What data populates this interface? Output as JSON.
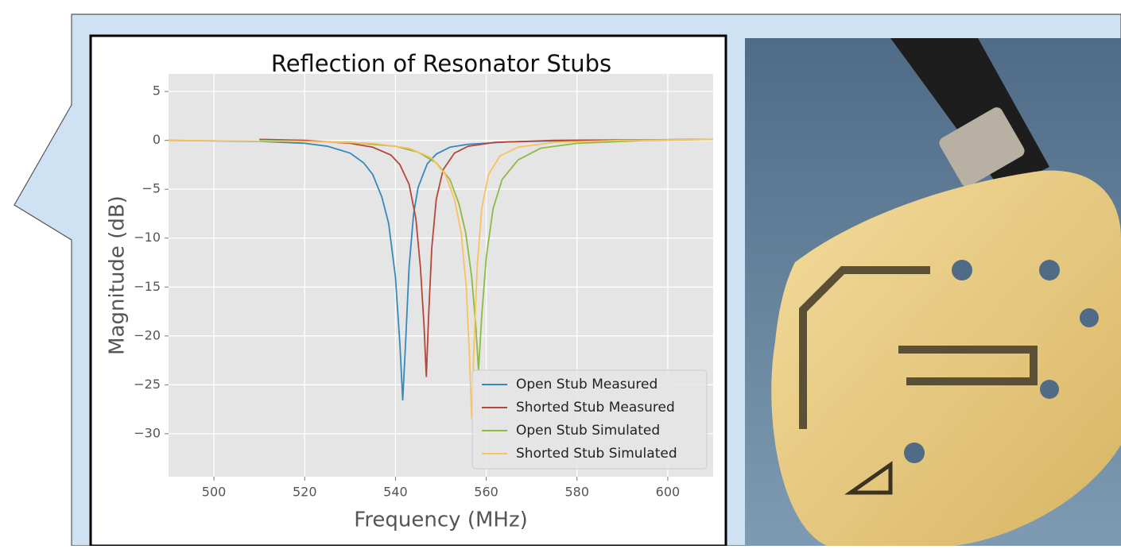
{
  "chart_data": {
    "type": "line",
    "title": "Reflection of Resonator Stubs",
    "x_label": "Frequency (MHz)",
    "y_label": "Magnitude (dB)",
    "xlim": [
      490,
      610
    ],
    "ylim": [
      -34.4,
      6.8
    ],
    "xticks": [
      500,
      520,
      540,
      560,
      580,
      600
    ],
    "yticks": [
      5,
      0,
      {
        "value": -5,
        "label": "−5"
      },
      {
        "value": -10,
        "label": "−10"
      },
      {
        "value": -15,
        "label": "−15"
      },
      {
        "value": -20,
        "label": "−20"
      },
      {
        "value": -25,
        "label": "−25"
      },
      {
        "value": -30,
        "label": "−30"
      }
    ],
    "grid": true,
    "legend": "lower right",
    "series": [
      {
        "name": "Open Stub Measured",
        "color": "#348ABD",
        "x": [
          490,
          510,
          520,
          525,
          530,
          533,
          535,
          537,
          538.5,
          540,
          541,
          541.6,
          542.3,
          543,
          544,
          545,
          547,
          549,
          552,
          556,
          565,
          580,
          610
        ],
        "values": [
          0,
          -0.1,
          -0.3,
          -0.6,
          -1.3,
          -2.3,
          -3.5,
          -5.8,
          -8.5,
          -14,
          -21,
          -26.6,
          -20,
          -13,
          -7.5,
          -4.8,
          -2.4,
          -1.4,
          -0.7,
          -0.4,
          -0.15,
          0,
          0.1
        ]
      },
      {
        "name": "Shorted Stub Measured",
        "color": "#B5473A",
        "x": [
          510,
          520,
          530,
          535,
          539,
          541,
          543,
          544.5,
          545.5,
          546.3,
          546.8,
          547.3,
          548,
          549,
          550.5,
          553,
          556,
          562,
          575,
          610
        ],
        "values": [
          0.1,
          0,
          -0.3,
          -0.7,
          -1.5,
          -2.5,
          -4.5,
          -8,
          -13,
          -19,
          -24.2,
          -18,
          -11,
          -6,
          -3,
          -1.3,
          -0.6,
          -0.2,
          0,
          0.1
        ]
      },
      {
        "name": "Open Stub Simulated",
        "color": "#8EBA42",
        "x": [
          510,
          530,
          540,
          545,
          549,
          552,
          554,
          555.5,
          556.8,
          557.7,
          558.3,
          559,
          560,
          561.5,
          563.5,
          567,
          572,
          580,
          595,
          610
        ],
        "values": [
          0,
          -0.2,
          -0.6,
          -1.2,
          -2.3,
          -4,
          -6.5,
          -9.5,
          -14,
          -19,
          -23.5,
          -18,
          -12,
          -7,
          -4,
          -2,
          -0.8,
          -0.3,
          0,
          0.1
        ]
      },
      {
        "name": "Shorted Stub Simulated",
        "color": "#FBC15E",
        "x": [
          490,
          520,
          535,
          543,
          548,
          551,
          553,
          554.5,
          555.6,
          556.3,
          556.8,
          557.3,
          558,
          559,
          560.5,
          563,
          567,
          575,
          590,
          610
        ],
        "values": [
          0,
          -0.1,
          -0.3,
          -0.8,
          -1.8,
          -3.5,
          -6,
          -9.5,
          -15,
          -22,
          -28.5,
          -21,
          -13,
          -7,
          -3.5,
          -1.6,
          -0.7,
          -0.2,
          0,
          0.1
        ]
      }
    ]
  }
}
